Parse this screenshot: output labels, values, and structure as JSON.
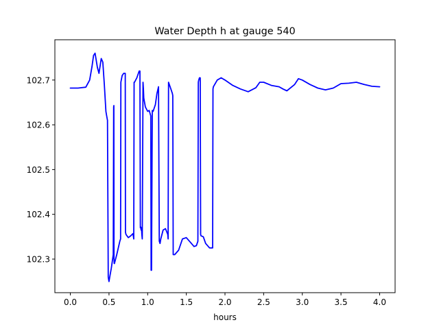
{
  "chart_data": {
    "type": "line",
    "title": "Water Depth h at gauge 540",
    "xlabel": "hours",
    "ylabel": "",
    "xlim": [
      -0.2,
      4.2
    ],
    "ylim": [
      102.225,
      102.79
    ],
    "x_ticks": [
      0.0,
      0.5,
      1.0,
      1.5,
      2.0,
      2.5,
      3.0,
      3.5,
      4.0
    ],
    "x_tick_labels": [
      "0.0",
      "0.5",
      "1.0",
      "1.5",
      "2.0",
      "2.5",
      "3.0",
      "3.5",
      "4.0"
    ],
    "y_ticks": [
      102.3,
      102.4,
      102.5,
      102.6,
      102.7
    ],
    "y_tick_labels": [
      "102.3",
      "102.4",
      "102.5",
      "102.6",
      "102.7"
    ],
    "grid": false,
    "legend": "none",
    "series": [
      {
        "color": "#0000ff",
        "x": [
          0.0,
          0.1,
          0.2,
          0.25,
          0.28,
          0.3,
          0.32,
          0.35,
          0.37,
          0.4,
          0.42,
          0.44,
          0.46,
          0.47,
          0.48,
          0.49,
          0.495,
          0.5,
          0.51,
          0.53,
          0.555,
          0.56,
          0.563,
          0.565,
          0.567,
          0.57,
          0.6,
          0.64,
          0.65,
          0.653,
          0.67,
          0.69,
          0.71,
          0.713,
          0.72,
          0.75,
          0.78,
          0.81,
          0.82,
          0.825,
          0.83,
          0.86,
          0.89,
          0.9,
          0.905,
          0.91,
          0.915,
          0.92,
          0.925,
          0.93,
          0.94,
          0.945,
          0.95,
          0.97,
          1.0,
          1.02,
          1.04,
          1.045,
          1.05,
          1.06,
          1.065,
          1.07,
          1.1,
          1.12,
          1.14,
          1.15,
          1.16,
          1.17,
          1.2,
          1.23,
          1.26,
          1.265,
          1.27,
          1.3,
          1.32,
          1.325,
          1.33,
          1.35,
          1.4,
          1.45,
          1.5,
          1.55,
          1.6,
          1.63,
          1.65,
          1.655,
          1.66,
          1.67,
          1.68,
          1.685,
          1.69,
          1.72,
          1.75,
          1.8,
          1.84,
          1.845,
          1.85,
          1.9,
          1.95,
          2.0,
          2.1,
          2.2,
          2.3,
          2.4,
          2.45,
          2.5,
          2.6,
          2.7,
          2.75,
          2.8,
          2.9,
          2.95,
          3.0,
          3.1,
          3.2,
          3.3,
          3.4,
          3.5,
          3.6,
          3.7,
          3.8,
          3.9,
          4.0
        ],
        "y": [
          102.682,
          102.682,
          102.684,
          102.7,
          102.73,
          102.755,
          102.76,
          102.728,
          102.715,
          102.748,
          102.74,
          102.69,
          102.63,
          102.62,
          102.61,
          102.26,
          102.255,
          102.25,
          102.26,
          102.28,
          102.31,
          102.64,
          102.643,
          102.3,
          102.29,
          102.29,
          102.31,
          102.34,
          102.345,
          102.695,
          102.71,
          102.715,
          102.715,
          102.36,
          102.355,
          102.348,
          102.352,
          102.357,
          102.345,
          102.695,
          102.695,
          102.705,
          102.72,
          102.72,
          102.37,
          102.372,
          102.365,
          102.37,
          102.355,
          102.345,
          102.695,
          102.68,
          102.66,
          102.64,
          102.63,
          102.632,
          102.62,
          102.275,
          102.275,
          102.632,
          102.63,
          102.63,
          102.645,
          102.67,
          102.685,
          102.34,
          102.335,
          102.345,
          102.365,
          102.368,
          102.355,
          102.345,
          102.695,
          102.68,
          102.67,
          102.665,
          102.31,
          102.31,
          102.32,
          102.345,
          102.348,
          102.338,
          102.328,
          102.33,
          102.34,
          102.695,
          102.7,
          102.705,
          102.705,
          102.355,
          102.352,
          102.35,
          102.335,
          102.325,
          102.325,
          102.68,
          102.685,
          102.7,
          102.705,
          102.7,
          102.688,
          102.68,
          102.674,
          102.683,
          102.695,
          102.695,
          102.688,
          102.685,
          102.68,
          102.676,
          102.69,
          102.703,
          102.7,
          102.69,
          102.682,
          102.678,
          102.682,
          102.692,
          102.693,
          102.695,
          102.69,
          102.686,
          102.685
        ]
      }
    ]
  }
}
